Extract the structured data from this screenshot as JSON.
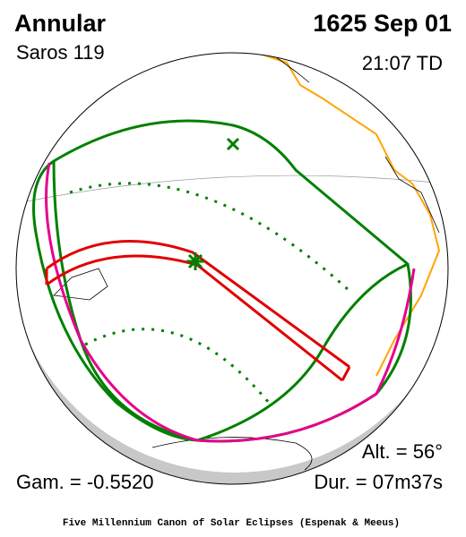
{
  "header": {
    "title": "Annular",
    "saros": "Saros 119",
    "date": "1625 Sep 01",
    "time": "21:07 TD"
  },
  "stats": {
    "altitude": "Alt. = 56°",
    "duration": "Dur. = 07m37s",
    "gamma": "Gam. = -0.5520"
  },
  "footer": "Five Millennium Canon of Solar Eclipses (Espenak & Meeus)"
}
